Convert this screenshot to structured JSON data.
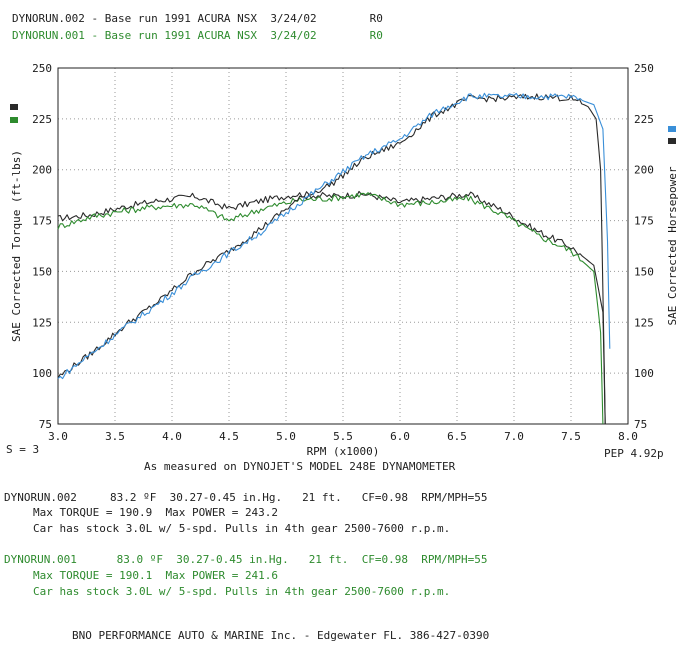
{
  "header": {
    "run2": {
      "name": "DYNORUN.002",
      "desc": "- Base run 1991 ACURA NSX",
      "date": "3/24/02",
      "code": "R0"
    },
    "run1": {
      "name": "DYNORUN.001",
      "desc": "- Base run 1991 ACURA NSX",
      "date": "3/24/02",
      "code": "R0"
    }
  },
  "colors": {
    "run2": "#2a2a2a",
    "run1_torque": "#2e8b2e",
    "run1_power": "#3a8fd8",
    "grid": "#9a9a9a"
  },
  "chart_labels": {
    "smoothing": "S = 3",
    "pep": "PEP 4.92p",
    "measured": "As measured on DYNOJET'S MODEL 248E DYNAMOMETER"
  },
  "chart_data": {
    "type": "line",
    "xlabel": "RPM (x1000)",
    "ylabel_left": "SAE Corrected Torque (ft-lbs)",
    "ylabel_right": "SAE Corrected Horsepower",
    "xlim": [
      3.0,
      8.0
    ],
    "ylim": [
      75,
      250
    ],
    "x_ticks": [
      "3.0",
      "3.5",
      "4.0",
      "4.5",
      "5.0",
      "5.5",
      "6.0",
      "6.5",
      "7.0",
      "7.5",
      "8.0"
    ],
    "y_ticks": [
      "75",
      "100",
      "125",
      "150",
      "175",
      "200",
      "225",
      "250"
    ],
    "grid": true,
    "series": [
      {
        "name": "DYNORUN.002",
        "quantity": "torque",
        "color": "#2a2a2a",
        "x": [
          3.0,
          3.3,
          3.6,
          3.9,
          4.2,
          4.5,
          4.8,
          5.1,
          5.4,
          5.7,
          6.0,
          6.3,
          6.6,
          6.9,
          7.2,
          7.5,
          7.7,
          7.78,
          7.8
        ],
        "y": [
          176,
          178,
          182,
          185,
          187,
          181,
          185,
          188,
          187,
          188,
          184,
          186,
          188,
          180,
          170,
          162,
          153,
          130,
          75
        ]
      },
      {
        "name": "DYNORUN.001",
        "quantity": "torque",
        "color": "#2e8b2e",
        "x": [
          3.0,
          3.3,
          3.6,
          3.9,
          4.2,
          4.5,
          4.8,
          5.1,
          5.4,
          5.7,
          6.0,
          6.3,
          6.6,
          6.9,
          7.2,
          7.5,
          7.7,
          7.76,
          7.78
        ],
        "y": [
          172,
          177,
          180,
          182,
          183,
          175,
          181,
          185,
          186,
          188,
          183,
          184,
          186,
          178,
          168,
          160,
          150,
          120,
          75
        ]
      },
      {
        "name": "DYNORUN.002",
        "quantity": "power",
        "color": "#2a2a2a",
        "x": [
          3.0,
          3.3,
          3.6,
          3.9,
          4.2,
          4.5,
          4.8,
          5.1,
          5.4,
          5.7,
          6.0,
          6.3,
          6.6,
          6.9,
          7.2,
          7.5,
          7.65,
          7.72,
          7.76,
          7.78,
          7.8
        ],
        "y": [
          98,
          110,
          124,
          136,
          150,
          160,
          172,
          185,
          193,
          206,
          213,
          227,
          235,
          235,
          236,
          235,
          231,
          225,
          200,
          140,
          75
        ]
      },
      {
        "name": "DYNORUN.001",
        "quantity": "power",
        "color": "#3a8fd8",
        "x": [
          3.0,
          3.3,
          3.6,
          3.9,
          4.2,
          4.5,
          4.8,
          5.1,
          5.4,
          5.7,
          6.0,
          6.3,
          6.6,
          6.9,
          7.2,
          7.5,
          7.7,
          7.78,
          7.82,
          7.84
        ],
        "y": [
          97,
          110,
          123,
          135,
          148,
          159,
          170,
          183,
          195,
          207,
          215,
          228,
          236,
          236,
          236,
          236,
          232,
          220,
          165,
          112
        ]
      }
    ]
  },
  "runs": [
    {
      "name": "DYNORUN.002",
      "temp": "83.2 ºF",
      "baro": "30.27-0.45 in.Hg.",
      "elev": "21 ft.",
      "cf": "CF=0.98",
      "rpmmph": "RPM/MPH=55",
      "max_torque": "Max TORQUE = 190.9",
      "max_power": "Max POWER = 243.2",
      "note": "Car has stock 3.0L w/ 5-spd. Pulls in 4th gear 2500-7600 r.p.m."
    },
    {
      "name": "DYNORUN.001",
      "temp": "83.0 ºF",
      "baro": "30.27-0.45 in.Hg.",
      "elev": "21 ft.",
      "cf": "CF=0.98",
      "rpmmph": "RPM/MPH=55",
      "max_torque": "Max TORQUE = 190.1",
      "max_power": "Max POWER = 241.6",
      "note": "Car has stock 3.0L w/ 5-spd. Pulls in 4th gear 2500-7600 r.p.m."
    }
  ],
  "footer": {
    "text": "BNO PERFORMANCE AUTO & MARINE Inc. - Edgewater FL. 386-427-0390"
  }
}
